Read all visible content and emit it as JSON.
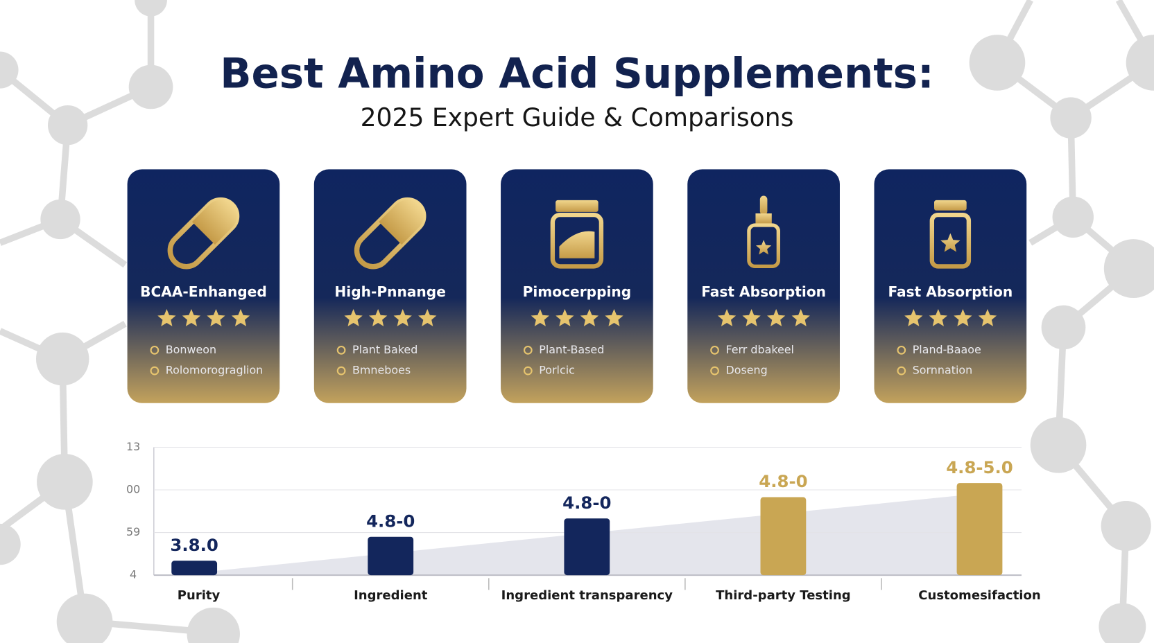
{
  "header": {
    "title": "Best Amino Acid Supplements:",
    "subtitle": "2025 Expert Guide & Comparisons"
  },
  "cards": [
    {
      "title": "BCAA-Enhanged",
      "features": [
        "Bonweon",
        "Rolomorograglion"
      ]
    },
    {
      "title": "High-Pnnange",
      "features": [
        "Plant Baked",
        "Bmneboes"
      ]
    },
    {
      "title": "Pimocerpping",
      "features": [
        "Plant-Based",
        "Porlcic"
      ]
    },
    {
      "title": "Fast Absorption",
      "features": [
        "Ferr dbakeel",
        "Doseng"
      ]
    },
    {
      "title": "Fast Absorption",
      "features": [
        "Pland-Baaoe",
        "Sornnation"
      ]
    }
  ],
  "chart_data": {
    "type": "bar",
    "categories": [
      "Purity",
      "Ingredient",
      "Ingredient transparency",
      "Third-party Testing",
      "Customesifaction"
    ],
    "values": [
      0.34,
      0.9,
      1.33,
      1.83,
      2.16
    ],
    "value_labels": [
      "3.8.0",
      "4.8-0",
      "4.8-0",
      "4.8-0",
      "4.8-5.0"
    ],
    "colors": [
      "#13265c",
      "#13265c",
      "#13265c",
      "#c9a653",
      "#c9a653"
    ],
    "ylim": [
      0,
      3
    ],
    "yticks": [
      {
        "value": 0,
        "label": "4"
      },
      {
        "value": 1,
        "label": "59"
      },
      {
        "value": 2,
        "label": "00"
      },
      {
        "value": 3,
        "label": "13"
      }
    ],
    "grid": true
  }
}
